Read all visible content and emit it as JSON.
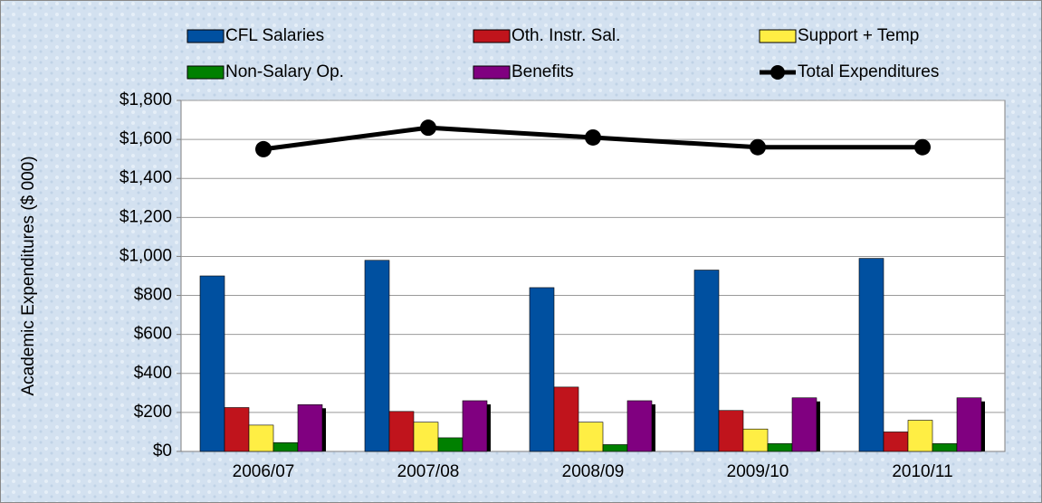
{
  "chart_data": {
    "type": "bar",
    "y_label": "Academic Expenditures ($ 000)",
    "categories": [
      "2006/07",
      "2007/08",
      "2008/09",
      "2009/10",
      "2010/11"
    ],
    "series": [
      {
        "name": "CFL Salaries",
        "color": "#0050a0",
        "values": [
          900,
          980,
          840,
          930,
          990
        ]
      },
      {
        "name": "Oth. Instr. Sal.",
        "color": "#c0141c",
        "values": [
          225,
          205,
          330,
          210,
          100
        ]
      },
      {
        "name": "Support + Temp",
        "color": "#ffee44",
        "values": [
          135,
          150,
          150,
          115,
          160
        ]
      },
      {
        "name": "Non-Salary Op.",
        "color": "#008000",
        "values": [
          45,
          70,
          35,
          40,
          40
        ]
      },
      {
        "name": "Benefits",
        "color": "#800080",
        "values": [
          240,
          260,
          260,
          275,
          275
        ]
      },
      {
        "name": "Total Expenditures",
        "color": "#000000",
        "type": "line",
        "values": [
          1550,
          1660,
          1610,
          1560,
          1560
        ]
      }
    ],
    "ylim": [
      0,
      1800
    ],
    "yticks": [
      {
        "value": 0,
        "label": "$0"
      },
      {
        "value": 200,
        "label": "$200"
      },
      {
        "value": 400,
        "label": "$400"
      },
      {
        "value": 600,
        "label": "$600"
      },
      {
        "value": 800,
        "label": "$800"
      },
      {
        "value": 1000,
        "label": "$1,000"
      },
      {
        "value": 1200,
        "label": "$1,200"
      },
      {
        "value": 1400,
        "label": "$1,400"
      },
      {
        "value": 1600,
        "label": "$1,600"
      },
      {
        "value": 1800,
        "label": "$1,800"
      }
    ],
    "grid": true
  }
}
